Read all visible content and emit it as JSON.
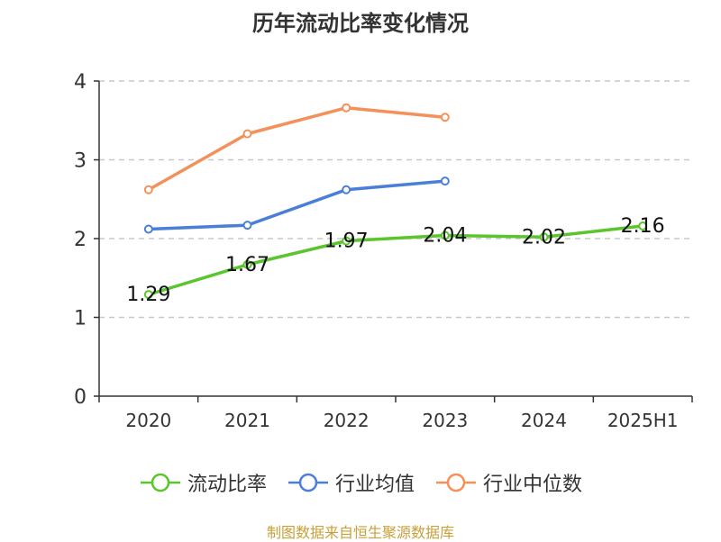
{
  "chart_data": {
    "type": "line",
    "title": "历年流动比率变化情况",
    "categories": [
      "2020",
      "2021",
      "2022",
      "2023",
      "2024",
      "2025H1"
    ],
    "ylim": [
      0,
      4
    ],
    "yticks": [
      "0",
      "1",
      "2",
      "3",
      "4"
    ],
    "grid": true,
    "legend_position": "bottom",
    "series": [
      {
        "name": "流动比率",
        "color": "#5bc52e",
        "values": [
          1.29,
          1.67,
          1.97,
          2.04,
          2.02,
          2.16
        ],
        "labels": [
          "1.29",
          "1.67",
          "1.97",
          "2.04",
          "2.02",
          "2.16"
        ]
      },
      {
        "name": "行业均值",
        "color": "#4a7fd8",
        "values": [
          2.12,
          2.17,
          2.62,
          2.73,
          null,
          null
        ]
      },
      {
        "name": "行业中位数",
        "color": "#f4905a",
        "values": [
          2.62,
          3.33,
          3.66,
          3.54,
          null,
          null
        ]
      }
    ]
  },
  "source": {
    "text": "制图数据来自恒生聚源数据库",
    "color": "#c8a03a"
  }
}
